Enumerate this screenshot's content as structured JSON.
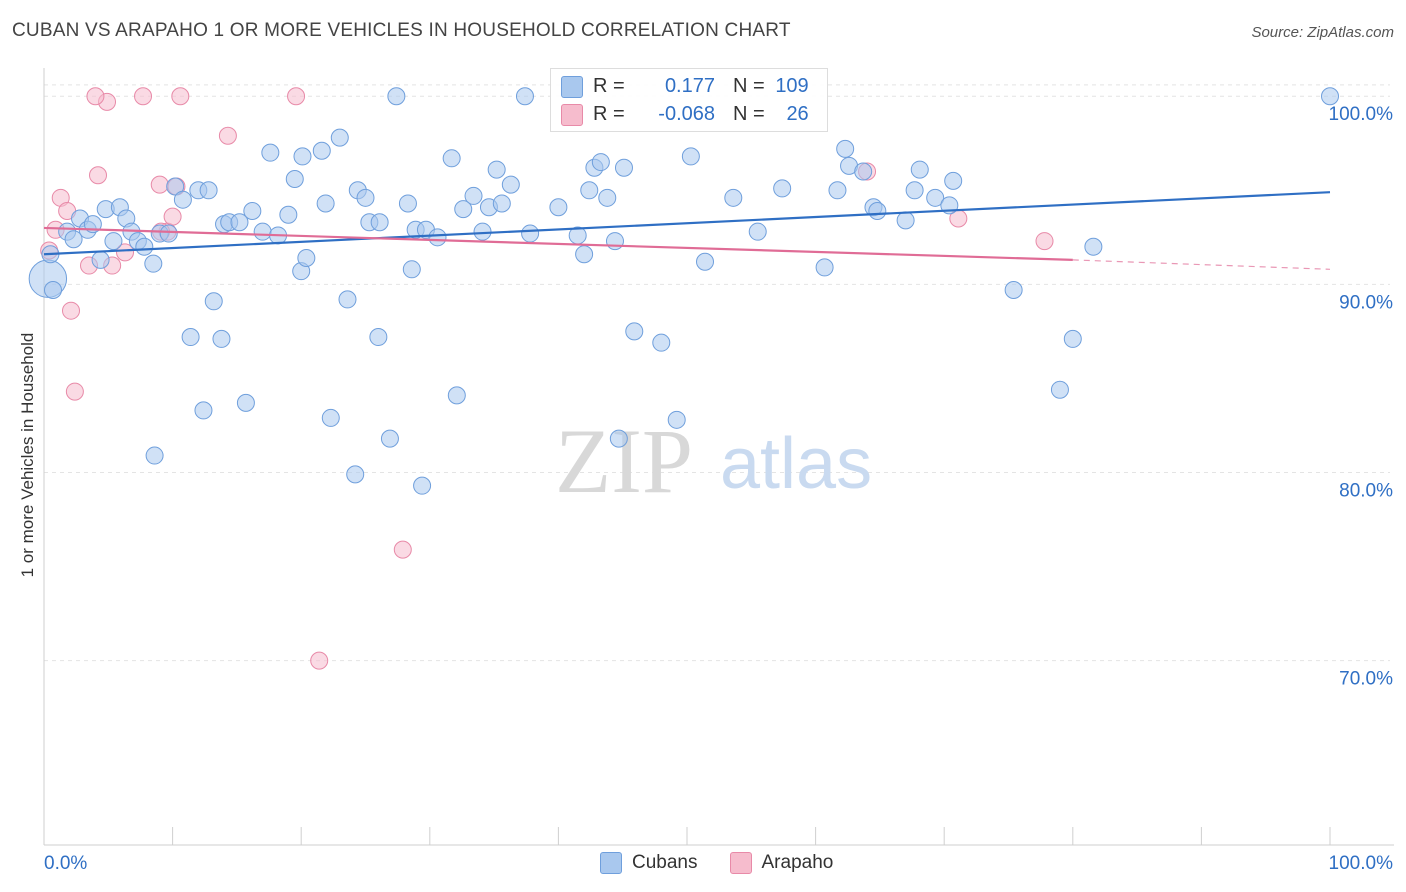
{
  "header": {
    "title": "CUBAN VS ARAPAHO 1 OR MORE VEHICLES IN HOUSEHOLD CORRELATION CHART",
    "source": "Source: ZipAtlas.com"
  },
  "watermark": {
    "zip": "ZIP",
    "atlas": "atlas"
  },
  "stats": {
    "r_label": "R =",
    "n_label": "N =",
    "rows": [
      {
        "r": "0.177",
        "n": "109"
      },
      {
        "r": "-0.068",
        "n": "26"
      }
    ]
  },
  "legend": {
    "items": [
      "Cubans",
      "Arapaho"
    ]
  },
  "colors": {
    "cubans_fill": "#a9c8ee",
    "cubans_stroke": "#6f9fdc",
    "cubans_line": "#2f6fc4",
    "arapaho_fill": "#f6bccd",
    "arapaho_stroke": "#e88aa8",
    "arapaho_line": "#e06c96",
    "tick_label": "#2f6fc4"
  },
  "chart_data": {
    "type": "scatter",
    "title": "CUBAN VS ARAPAHO 1 OR MORE VEHICLES IN HOUSEHOLD CORRELATION CHART",
    "xlabel": "",
    "ylabel": "1 or more Vehicles in Household",
    "xlim": [
      0,
      100
    ],
    "ylim": [
      60.2,
      101.5
    ],
    "x_tick_labels": [
      "0.0%",
      "100.0%"
    ],
    "y_ticks": [
      70,
      80,
      90,
      100
    ],
    "y_tick_labels": [
      "70.0%",
      "80.0%",
      "90.0%",
      "100.0%"
    ],
    "grid": true,
    "legend_position": "bottom-center",
    "series": [
      {
        "name": "Cubans",
        "r": 0.177,
        "n": 109,
        "trend": {
          "x": [
            0,
            100
          ],
          "y": [
            91.6,
            94.9
          ]
        },
        "points": [
          [
            0.3,
            90.3,
            2.2
          ],
          [
            0.5,
            91.6,
            1
          ],
          [
            0.7,
            89.7,
            1
          ],
          [
            1.8,
            92.8,
            1
          ],
          [
            2.3,
            92.4,
            1
          ],
          [
            2.8,
            93.5,
            1
          ],
          [
            3.4,
            92.9,
            1
          ],
          [
            3.8,
            93.2,
            1
          ],
          [
            4.4,
            91.3,
            1
          ],
          [
            4.8,
            94.0,
            1
          ],
          [
            5.4,
            92.3,
            1
          ],
          [
            5.9,
            94.1,
            1
          ],
          [
            6.4,
            93.5,
            1
          ],
          [
            6.8,
            92.8,
            1
          ],
          [
            7.3,
            92.3,
            1
          ],
          [
            7.8,
            92.0,
            1
          ],
          [
            8.5,
            91.1,
            1
          ],
          [
            9.0,
            92.7,
            1
          ],
          [
            9.7,
            92.7,
            1
          ],
          [
            10.2,
            95.2,
            1
          ],
          [
            10.8,
            94.5,
            1
          ],
          [
            12.0,
            95.0,
            1
          ],
          [
            12.8,
            95.0,
            1
          ],
          [
            13.2,
            89.1,
            1
          ],
          [
            14.0,
            93.2,
            1
          ],
          [
            14.4,
            93.3,
            1
          ],
          [
            15.2,
            93.3,
            1
          ],
          [
            16.2,
            93.9,
            1
          ],
          [
            17.0,
            92.8,
            1
          ],
          [
            17.6,
            97.0,
            1
          ],
          [
            18.2,
            92.6,
            1
          ],
          [
            19.0,
            93.7,
            1
          ],
          [
            19.5,
            95.6,
            1
          ],
          [
            20.0,
            90.7,
            1
          ],
          [
            20.4,
            91.4,
            1
          ],
          [
            21.6,
            97.1,
            1
          ],
          [
            21.9,
            94.3,
            1
          ],
          [
            23.0,
            97.8,
            1
          ],
          [
            23.6,
            89.2,
            1
          ],
          [
            24.4,
            95.0,
            1
          ],
          [
            25.0,
            94.6,
            1
          ],
          [
            25.3,
            93.3,
            1
          ],
          [
            26.0,
            87.2,
            1
          ],
          [
            27.4,
            100.0,
            1
          ],
          [
            28.3,
            94.3,
            1
          ],
          [
            28.6,
            90.8,
            1
          ],
          [
            28.9,
            92.9,
            1
          ],
          [
            29.7,
            92.9,
            1
          ],
          [
            30.6,
            92.5,
            1
          ],
          [
            31.7,
            96.7,
            1
          ],
          [
            32.1,
            84.1,
            1
          ],
          [
            32.6,
            94.0,
            1
          ],
          [
            33.4,
            94.7,
            1
          ],
          [
            34.1,
            92.8,
            1
          ],
          [
            34.6,
            94.1,
            1
          ],
          [
            35.2,
            96.1,
            1
          ],
          [
            35.6,
            94.3,
            1
          ],
          [
            36.3,
            95.3,
            1
          ],
          [
            37.4,
            100.0,
            1
          ],
          [
            37.8,
            92.7,
            1
          ],
          [
            40.0,
            94.1,
            1
          ],
          [
            41.5,
            92.6,
            1
          ],
          [
            42.0,
            91.6,
            1
          ],
          [
            42.4,
            95.0,
            1
          ],
          [
            42.8,
            96.2,
            1
          ],
          [
            43.3,
            96.5,
            1
          ],
          [
            43.8,
            94.6,
            1
          ],
          [
            44.4,
            92.3,
            1
          ],
          [
            44.7,
            81.8,
            1
          ],
          [
            45.1,
            96.2,
            1
          ],
          [
            48.0,
            86.9,
            1
          ],
          [
            49.2,
            82.8,
            1
          ],
          [
            50.3,
            96.8,
            1
          ],
          [
            51.4,
            91.2,
            1
          ],
          [
            53.6,
            94.6,
            1
          ],
          [
            55.5,
            92.8,
            1
          ],
          [
            57.4,
            95.1,
            1
          ],
          [
            60.7,
            90.9,
            1
          ],
          [
            61.7,
            95.0,
            1
          ],
          [
            62.3,
            97.2,
            1
          ],
          [
            62.6,
            96.3,
            1
          ],
          [
            63.7,
            96.0,
            1
          ],
          [
            64.5,
            94.1,
            1
          ],
          [
            64.8,
            93.9,
            1
          ],
          [
            67.0,
            93.4,
            1
          ],
          [
            67.7,
            95.0,
            1
          ],
          [
            68.1,
            96.1,
            1
          ],
          [
            69.3,
            94.6,
            1
          ],
          [
            70.4,
            94.2,
            1
          ],
          [
            70.7,
            95.5,
            1
          ],
          [
            75.4,
            89.7,
            1
          ],
          [
            79.0,
            84.4,
            1
          ],
          [
            80.0,
            87.1,
            1
          ],
          [
            81.6,
            92.0,
            1
          ],
          [
            100.0,
            100.0,
            1
          ],
          [
            8.6,
            80.9,
            1
          ],
          [
            12.4,
            83.3,
            1
          ],
          [
            15.7,
            83.7,
            1
          ],
          [
            22.3,
            82.9,
            1
          ],
          [
            24.2,
            79.9,
            1
          ],
          [
            26.9,
            81.8,
            1
          ],
          [
            29.4,
            79.3,
            1
          ],
          [
            11.4,
            87.2,
            1
          ],
          [
            13.8,
            87.1,
            1
          ],
          [
            20.1,
            96.8,
            1
          ],
          [
            26.1,
            93.3,
            1
          ],
          [
            45.9,
            87.5,
            1
          ]
        ]
      },
      {
        "name": "Arapaho",
        "r": -0.068,
        "n": 26,
        "trend": {
          "x": [
            0,
            80
          ],
          "y": [
            93.0,
            91.3
          ],
          "dashed_x": [
            80,
            100
          ],
          "dashed_y": [
            91.3,
            90.8
          ]
        },
        "points": [
          [
            0.4,
            91.8,
            1
          ],
          [
            0.9,
            92.9,
            1
          ],
          [
            1.3,
            94.6,
            1
          ],
          [
            1.8,
            93.9,
            1
          ],
          [
            2.1,
            88.6,
            1
          ],
          [
            2.4,
            84.3,
            1
          ],
          [
            3.5,
            91.0,
            1
          ],
          [
            4.2,
            95.8,
            1
          ],
          [
            4.9,
            99.7,
            1
          ],
          [
            5.3,
            91.0,
            1
          ],
          [
            6.3,
            91.7,
            1
          ],
          [
            7.7,
            100.0,
            1
          ],
          [
            9.0,
            95.3,
            1
          ],
          [
            9.6,
            92.8,
            1
          ],
          [
            10.0,
            93.6,
            1
          ],
          [
            10.3,
            95.2,
            1
          ],
          [
            10.6,
            100.0,
            1
          ],
          [
            14.3,
            97.9,
            1
          ],
          [
            19.6,
            100.0,
            1
          ],
          [
            21.4,
            70.0,
            1
          ],
          [
            27.9,
            75.9,
            1
          ],
          [
            64.0,
            96.0,
            1
          ],
          [
            71.1,
            93.5,
            1
          ],
          [
            77.8,
            92.3,
            1
          ],
          [
            4.0,
            100.0,
            1
          ],
          [
            9.1,
            92.8,
            1
          ]
        ]
      }
    ]
  }
}
